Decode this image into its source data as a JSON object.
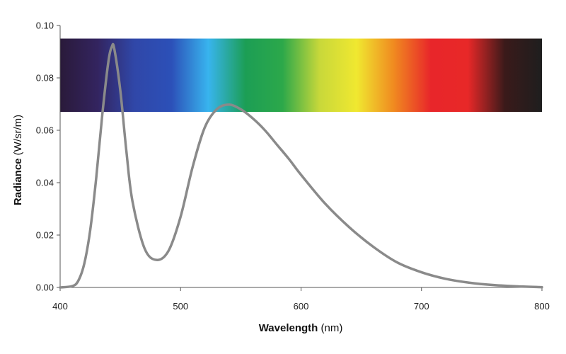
{
  "chart_data": {
    "type": "line",
    "title": "",
    "xlabel_main": "Wavelength",
    "xlabel_unit": "(nm)",
    "ylabel_main": "Radiance",
    "ylabel_unit": "(W/sr/m)",
    "xlim": [
      400,
      800
    ],
    "ylim": [
      0,
      0.1
    ],
    "x_ticks": [
      "400",
      "500",
      "600",
      "700",
      "800"
    ],
    "y_ticks": [
      "0.00",
      "0.02",
      "0.04",
      "0.06",
      "0.08",
      "0.10"
    ],
    "grid": false,
    "legend": "none",
    "spectrum_band": {
      "x_range": [
        400,
        800
      ],
      "y_range": [
        0.067,
        0.095
      ],
      "colors": [
        "#2a1a3a",
        "#33245f",
        "#3047a8",
        "#2c50b8",
        "#38b4ee",
        "#1c9e55",
        "#2ca84a",
        "#c8d83a",
        "#f0e830",
        "#f08a20",
        "#e8262a",
        "#e82828",
        "#3a1a1a",
        "#1e1e1e"
      ]
    },
    "series": [
      {
        "color": "#8a8a8a",
        "x": [
          400,
          410,
          415,
          420,
          425,
          430,
          435,
          440,
          443,
          445,
          450,
          455,
          460,
          470,
          480,
          490,
          500,
          510,
          520,
          530,
          540,
          550,
          560,
          570,
          580,
          590,
          600,
          620,
          640,
          660,
          680,
          700,
          720,
          740,
          760,
          780,
          800
        ],
        "y": [
          0.0,
          0.0005,
          0.0025,
          0.009,
          0.022,
          0.042,
          0.066,
          0.086,
          0.092,
          0.091,
          0.075,
          0.052,
          0.033,
          0.015,
          0.0105,
          0.014,
          0.027,
          0.046,
          0.061,
          0.068,
          0.0698,
          0.068,
          0.0645,
          0.06,
          0.0545,
          0.049,
          0.043,
          0.032,
          0.023,
          0.0155,
          0.0095,
          0.0058,
          0.0033,
          0.0018,
          0.0009,
          0.0004,
          0.0001
        ]
      }
    ]
  }
}
